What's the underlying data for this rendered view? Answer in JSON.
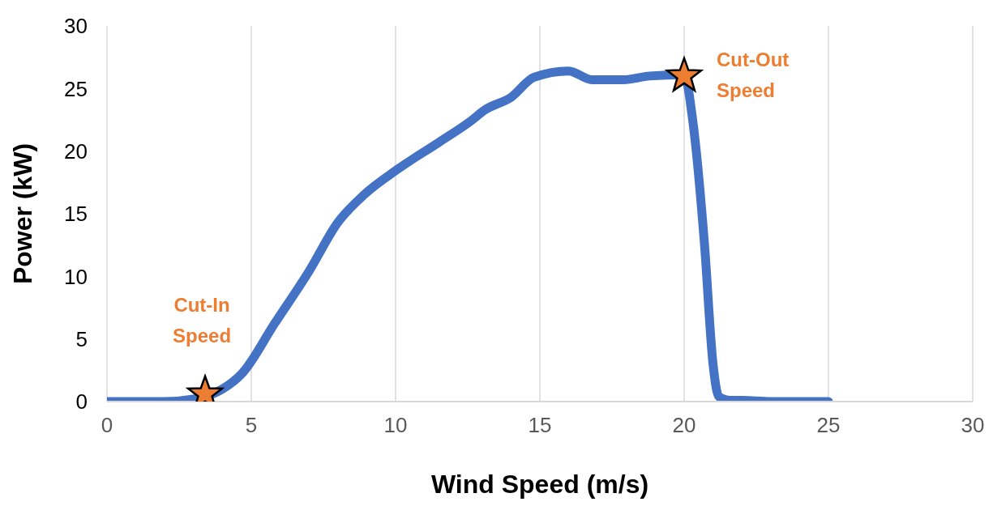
{
  "chart_data": {
    "type": "line",
    "xlabel": "Wind Speed (m/s)",
    "ylabel": "Power (kW)",
    "xlim": [
      0,
      30
    ],
    "xticks": [
      0,
      5,
      10,
      15,
      20,
      25,
      30
    ],
    "ylim": [
      0,
      30
    ],
    "yticks": [
      0,
      5,
      10,
      15,
      20,
      25,
      30
    ],
    "grid": "x",
    "series": [
      {
        "color": "#4472c4",
        "marker": "none",
        "line_style": "solid",
        "x": [
          0,
          1,
          2,
          3,
          4,
          4.7,
          5.8,
          7,
          8,
          8.9,
          10.1,
          11.5,
          12.6,
          13.1,
          14,
          14.8,
          16,
          16.8,
          17.9,
          18.8,
          20,
          20.3,
          20.7,
          21,
          21.2,
          21.6,
          22,
          23,
          24,
          25
        ],
        "values": [
          0,
          0,
          0,
          0.2,
          1,
          2.3,
          6.2,
          10.4,
          14.3,
          16.5,
          18.6,
          20.7,
          22.4,
          23.3,
          24.3,
          25.9,
          26.4,
          25.7,
          25.7,
          26,
          26.1,
          22.4,
          12.7,
          3,
          0.4,
          0.1,
          0.1,
          0,
          0,
          0
        ]
      },
      {
        "type": "scatter",
        "color": "#ed7d31",
        "marker": "star",
        "x": [
          3.4,
          20
        ],
        "values": [
          0.6,
          26
        ]
      }
    ],
    "annotations": [
      {
        "text": "Cut-In Speed",
        "x": 3.4,
        "y": 0.6
      },
      {
        "text": "Cut-Out Speed",
        "x": 20,
        "y": 26
      }
    ]
  }
}
